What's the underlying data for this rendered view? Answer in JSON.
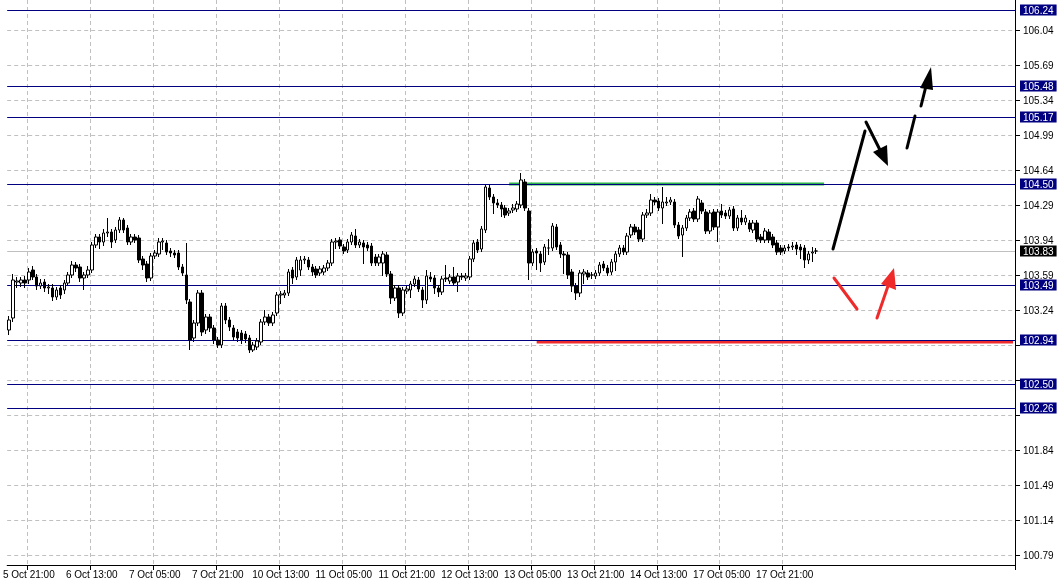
{
  "chart_data": {
    "type": "candlestick",
    "color": "#000000",
    "categories": [
      null,
      null,
      null,
      null,
      null,
      "5 Oct 21:00",
      null,
      null,
      null,
      null,
      null,
      null,
      null,
      null,
      null,
      null,
      null,
      null,
      null,
      null,
      null,
      "6 Oct 13:00",
      null,
      null,
      null,
      null,
      null,
      null,
      null,
      null,
      null,
      null,
      null,
      null,
      null,
      null,
      null,
      "7 Oct 05:00",
      null,
      null,
      null,
      null,
      null,
      null,
      null,
      null,
      null,
      null,
      null,
      null,
      null,
      null,
      null,
      "7 Oct 21:00",
      null,
      null,
      null,
      null,
      null,
      null,
      null,
      null,
      null,
      null,
      null,
      null,
      null,
      null,
      null,
      "10 Oct 13:00",
      null,
      null,
      null,
      null,
      null,
      null,
      null,
      null,
      null,
      null,
      null,
      null,
      null,
      null,
      null,
      "11 Oct 05:00",
      null,
      null,
      null,
      null,
      null,
      null,
      null,
      null,
      null,
      null,
      null,
      null,
      null,
      null,
      null,
      "11 Oct 21:00",
      null,
      null,
      null,
      null,
      null,
      null,
      null,
      null,
      null,
      null,
      null,
      null,
      null,
      null,
      null,
      "12 Oct 13:00",
      null,
      null,
      null,
      null,
      null,
      null,
      null,
      null,
      null,
      null,
      null,
      null,
      null,
      null,
      null,
      "13 Oct 05:00",
      null,
      null,
      null,
      null,
      null,
      null,
      null,
      null,
      null,
      null,
      null,
      null,
      null,
      null,
      null,
      "13 Oct 21:00",
      null,
      null,
      null,
      null,
      null,
      null,
      null,
      null,
      null,
      null,
      null,
      null,
      null,
      null,
      null,
      "14 Oct 13:00",
      null,
      null,
      null,
      null,
      null,
      null,
      null,
      null,
      null,
      null,
      null,
      null,
      null,
      null,
      null,
      "17 Oct 05:00",
      null,
      null,
      null,
      null,
      null,
      null,
      null,
      null,
      null,
      null,
      null,
      null,
      null,
      null,
      null,
      "17 Oct 21:00",
      null,
      null,
      null,
      null,
      null,
      null,
      null,
      null,
      null,
      null,
      null,
      null,
      null,
      null,
      null,
      null,
      null,
      null,
      null,
      null,
      null,
      null,
      null,
      null,
      null,
      null,
      null,
      null,
      null,
      null,
      null,
      null,
      null,
      null,
      null,
      null,
      null,
      null,
      null,
      null,
      null,
      null,
      null,
      null,
      null,
      null,
      null,
      null,
      null,
      null,
      null,
      null,
      null,
      null,
      null,
      null,
      null,
      null
    ],
    "ohlc": [
      [
        103.04,
        103.18,
        102.99,
        103.14
      ],
      [
        103.16,
        103.6,
        103.12,
        103.54
      ],
      [
        103.52,
        103.57,
        103.46,
        103.53
      ],
      [
        103.51,
        103.57,
        103.47,
        103.54
      ],
      [
        103.54,
        103.58,
        103.46,
        103.51
      ],
      [
        103.54,
        103.66,
        103.5,
        103.62
      ],
      [
        103.64,
        103.68,
        103.54,
        103.57
      ],
      [
        103.57,
        103.6,
        103.44,
        103.48
      ],
      [
        103.48,
        103.55,
        103.45,
        103.51
      ],
      [
        103.52,
        103.55,
        103.42,
        103.46
      ],
      [
        103.46,
        103.5,
        103.4,
        103.47
      ],
      [
        103.46,
        103.5,
        103.33,
        103.37
      ],
      [
        103.37,
        103.47,
        103.34,
        103.44
      ],
      [
        103.46,
        103.49,
        103.35,
        103.39
      ],
      [
        103.44,
        103.54,
        103.4,
        103.51
      ],
      [
        103.51,
        103.62,
        103.48,
        103.59
      ],
      [
        103.59,
        103.73,
        103.56,
        103.69
      ],
      [
        103.69,
        103.72,
        103.62,
        103.66
      ],
      [
        103.67,
        103.7,
        103.52,
        103.56
      ],
      [
        103.56,
        103.62,
        103.44,
        103.59
      ],
      [
        103.59,
        103.68,
        103.56,
        103.64
      ],
      [
        103.64,
        103.92,
        103.61,
        103.89
      ],
      [
        103.89,
        104.0,
        103.86,
        103.97
      ],
      [
        103.97,
        104.0,
        103.85,
        103.92
      ],
      [
        103.92,
        104.05,
        103.88,
        104.01
      ],
      [
        104.01,
        104.16,
        103.97,
        104.02
      ],
      [
        104.02,
        104.05,
        103.86,
        103.92
      ],
      [
        103.94,
        104.07,
        103.91,
        104.04
      ],
      [
        104.04,
        104.17,
        104.01,
        104.14
      ],
      [
        104.14,
        104.16,
        104.01,
        104.04
      ],
      [
        104.06,
        104.09,
        103.89,
        103.92
      ],
      [
        103.92,
        104.0,
        103.89,
        103.97
      ],
      [
        103.97,
        104.0,
        103.91,
        103.94
      ],
      [
        103.96,
        103.99,
        103.71,
        103.74
      ],
      [
        103.75,
        103.78,
        103.64,
        103.69
      ],
      [
        103.7,
        103.73,
        103.52,
        103.56
      ],
      [
        103.56,
        103.81,
        103.53,
        103.78
      ],
      [
        103.78,
        103.84,
        103.75,
        103.81
      ],
      [
        103.8,
        103.96,
        103.77,
        103.92
      ],
      [
        103.92,
        103.96,
        103.84,
        103.93
      ],
      [
        103.91,
        103.94,
        103.79,
        103.82
      ],
      [
        103.83,
        103.86,
        103.77,
        103.81
      ],
      [
        103.81,
        103.84,
        103.76,
        103.79
      ],
      [
        103.81,
        103.84,
        103.64,
        103.67
      ],
      [
        103.67,
        103.7,
        103.58,
        103.61
      ],
      [
        103.59,
        103.91,
        103.3,
        103.34
      ],
      [
        103.32,
        103.35,
        102.84,
        102.94
      ],
      [
        102.96,
        103.14,
        102.92,
        103.11
      ],
      [
        103.11,
        103.44,
        103.08,
        103.41
      ],
      [
        103.41,
        103.44,
        102.98,
        103.02
      ],
      [
        103.04,
        103.2,
        103.0,
        103.17
      ],
      [
        103.17,
        103.2,
        103.02,
        103.06
      ],
      [
        103.06,
        103.09,
        102.9,
        102.94
      ],
      [
        102.94,
        102.97,
        102.86,
        102.89
      ],
      [
        102.89,
        103.31,
        102.86,
        103.28
      ],
      [
        103.28,
        103.31,
        103.1,
        103.14
      ],
      [
        103.14,
        103.17,
        103.03,
        103.07
      ],
      [
        103.06,
        103.09,
        102.93,
        102.97
      ],
      [
        103.02,
        103.05,
        102.92,
        102.96
      ],
      [
        103.01,
        103.04,
        102.9,
        102.94
      ],
      [
        103.0,
        103.03,
        102.91,
        102.95
      ],
      [
        102.96,
        102.99,
        102.81,
        102.84
      ],
      [
        102.84,
        102.92,
        102.82,
        102.89
      ],
      [
        102.87,
        102.96,
        102.84,
        102.93
      ],
      [
        102.92,
        103.15,
        102.89,
        103.12
      ],
      [
        103.12,
        103.24,
        103.09,
        103.17
      ],
      [
        103.17,
        103.2,
        103.08,
        103.11
      ],
      [
        103.11,
        103.22,
        103.08,
        103.19
      ],
      [
        103.21,
        103.42,
        103.18,
        103.39
      ],
      [
        103.39,
        103.43,
        103.3,
        103.4
      ],
      [
        103.39,
        103.44,
        103.36,
        103.41
      ],
      [
        103.41,
        103.65,
        103.38,
        103.62
      ],
      [
        103.64,
        103.67,
        103.5,
        103.56
      ],
      [
        103.57,
        103.77,
        103.54,
        103.74
      ],
      [
        103.64,
        103.78,
        103.58,
        103.74
      ],
      [
        103.74,
        103.78,
        103.7,
        103.75
      ],
      [
        103.74,
        103.77,
        103.64,
        103.67
      ],
      [
        103.67,
        103.7,
        103.58,
        103.62
      ],
      [
        103.65,
        103.68,
        103.56,
        103.59
      ],
      [
        103.61,
        103.68,
        103.58,
        103.65
      ],
      [
        103.62,
        103.69,
        103.59,
        103.66
      ],
      [
        103.66,
        103.74,
        103.63,
        103.71
      ],
      [
        103.71,
        103.95,
        103.68,
        103.92
      ],
      [
        103.92,
        103.96,
        103.85,
        103.93
      ],
      [
        103.94,
        103.97,
        103.85,
        103.88
      ],
      [
        103.87,
        103.9,
        103.8,
        103.83
      ],
      [
        103.84,
        103.95,
        103.81,
        103.92
      ],
      [
        103.92,
        104.02,
        103.89,
        103.99
      ],
      [
        103.98,
        104.05,
        103.86,
        103.89
      ],
      [
        103.89,
        103.95,
        103.86,
        103.92
      ],
      [
        103.91,
        103.94,
        103.7,
        103.87
      ],
      [
        103.89,
        103.92,
        103.83,
        103.86
      ],
      [
        103.88,
        103.91,
        103.68,
        103.71
      ],
      [
        103.77,
        103.8,
        103.68,
        103.71
      ],
      [
        103.71,
        103.8,
        103.68,
        103.77
      ],
      [
        103.71,
        103.83,
        103.58,
        103.8
      ],
      [
        103.79,
        103.82,
        103.57,
        103.6
      ],
      [
        103.6,
        103.63,
        103.3,
        103.36
      ],
      [
        103.36,
        103.49,
        103.33,
        103.46
      ],
      [
        103.46,
        103.49,
        103.16,
        103.21
      ],
      [
        103.21,
        103.47,
        103.18,
        103.44
      ],
      [
        103.43,
        103.48,
        103.4,
        103.45
      ],
      [
        103.44,
        103.53,
        103.36,
        103.5
      ],
      [
        103.5,
        103.58,
        103.47,
        103.55
      ],
      [
        103.54,
        103.57,
        103.42,
        103.45
      ],
      [
        103.44,
        103.47,
        103.26,
        103.34
      ],
      [
        103.34,
        103.64,
        103.3,
        103.58
      ],
      [
        103.57,
        103.62,
        103.52,
        103.55
      ],
      [
        103.56,
        103.59,
        103.4,
        103.46
      ],
      [
        103.46,
        103.49,
        103.37,
        103.42
      ],
      [
        103.42,
        103.58,
        103.39,
        103.55
      ],
      [
        103.56,
        103.69,
        103.52,
        103.55
      ],
      [
        103.53,
        103.6,
        103.5,
        103.57
      ],
      [
        103.57,
        103.67,
        103.48,
        103.51
      ],
      [
        103.52,
        103.61,
        103.42,
        103.58
      ],
      [
        103.58,
        103.61,
        103.54,
        103.57
      ],
      [
        103.56,
        103.61,
        103.53,
        103.58
      ],
      [
        103.57,
        103.78,
        103.54,
        103.75
      ],
      [
        103.75,
        103.94,
        103.72,
        103.91
      ],
      [
        103.92,
        103.95,
        103.81,
        103.84
      ],
      [
        103.85,
        104.08,
        103.82,
        104.05
      ],
      [
        104.04,
        104.5,
        104.01,
        104.47
      ],
      [
        104.46,
        104.49,
        104.34,
        104.37
      ],
      [
        104.37,
        104.4,
        104.2,
        104.31
      ],
      [
        104.31,
        104.35,
        104.26,
        104.29
      ],
      [
        104.29,
        104.32,
        104.17,
        104.25
      ],
      [
        104.26,
        104.29,
        104.16,
        104.19
      ],
      [
        104.21,
        104.26,
        104.18,
        104.23
      ],
      [
        104.24,
        104.3,
        104.21,
        104.26
      ],
      [
        104.25,
        104.33,
        104.22,
        104.3
      ],
      [
        104.29,
        104.61,
        104.26,
        104.54
      ],
      [
        104.52,
        104.55,
        104.23,
        104.26
      ],
      [
        104.23,
        104.26,
        103.54,
        103.71
      ],
      [
        103.71,
        103.85,
        103.68,
        103.82
      ],
      [
        103.83,
        103.86,
        103.64,
        103.81
      ],
      [
        103.8,
        103.83,
        103.62,
        103.71
      ],
      [
        103.72,
        103.9,
        103.69,
        103.87
      ],
      [
        103.86,
        103.95,
        103.79,
        103.86
      ],
      [
        103.86,
        104.11,
        103.83,
        104.08
      ],
      [
        104.07,
        104.1,
        103.84,
        103.87
      ],
      [
        103.89,
        103.92,
        103.76,
        103.8
      ],
      [
        103.8,
        103.83,
        103.6,
        103.79
      ],
      [
        103.79,
        103.82,
        103.55,
        103.59
      ],
      [
        103.62,
        103.65,
        103.42,
        103.48
      ],
      [
        103.48,
        103.51,
        103.34,
        103.41
      ],
      [
        103.41,
        103.64,
        103.37,
        103.61
      ],
      [
        103.6,
        103.65,
        103.5,
        103.62
      ],
      [
        103.61,
        103.64,
        103.54,
        103.57
      ],
      [
        103.59,
        103.62,
        103.55,
        103.59
      ],
      [
        103.58,
        103.64,
        103.55,
        103.61
      ],
      [
        103.61,
        103.72,
        103.58,
        103.69
      ],
      [
        103.7,
        103.73,
        103.63,
        103.66
      ],
      [
        103.66,
        103.69,
        103.58,
        103.61
      ],
      [
        103.62,
        103.75,
        103.59,
        103.72
      ],
      [
        103.72,
        103.83,
        103.63,
        103.8
      ],
      [
        103.8,
        103.89,
        103.77,
        103.86
      ],
      [
        103.86,
        103.89,
        103.79,
        103.82
      ],
      [
        103.82,
        104.01,
        103.79,
        103.98
      ],
      [
        103.99,
        104.1,
        103.96,
        104.07
      ],
      [
        104.07,
        104.1,
        103.99,
        104.02
      ],
      [
        104.04,
        104.07,
        103.92,
        103.95
      ],
      [
        103.95,
        104.22,
        103.92,
        104.19
      ],
      [
        104.19,
        104.25,
        104.16,
        104.21
      ],
      [
        104.21,
        104.4,
        104.18,
        104.34
      ],
      [
        104.34,
        104.37,
        104.29,
        104.32
      ],
      [
        104.33,
        104.36,
        104.23,
        104.26
      ],
      [
        104.26,
        104.47,
        104.1,
        104.32
      ],
      [
        104.31,
        104.37,
        104.28,
        104.32
      ],
      [
        104.32,
        104.37,
        104.29,
        104.34
      ],
      [
        104.32,
        104.35,
        104.06,
        104.09
      ],
      [
        104.09,
        104.12,
        103.95,
        103.98
      ],
      [
        103.99,
        104.09,
        103.77,
        104.06
      ],
      [
        104.06,
        104.19,
        104.03,
        104.16
      ],
      [
        104.16,
        104.25,
        104.13,
        104.22
      ],
      [
        104.23,
        104.26,
        104.12,
        104.15
      ],
      [
        104.15,
        104.38,
        104.12,
        104.35
      ],
      [
        104.31,
        104.34,
        104.2,
        104.23
      ],
      [
        104.22,
        104.25,
        104.0,
        104.03
      ],
      [
        104.03,
        104.24,
        104.0,
        104.21
      ],
      [
        104.22,
        104.25,
        104.04,
        104.07
      ],
      [
        104.07,
        104.25,
        103.92,
        104.22
      ],
      [
        104.23,
        104.3,
        104.16,
        104.19
      ],
      [
        104.21,
        104.24,
        104.15,
        104.18
      ],
      [
        104.18,
        104.27,
        104.15,
        104.24
      ],
      [
        104.25,
        104.28,
        104.03,
        104.06
      ],
      [
        104.06,
        104.19,
        104.03,
        104.16
      ],
      [
        104.16,
        104.24,
        104.09,
        104.12
      ],
      [
        104.12,
        104.19,
        104.09,
        104.16
      ],
      [
        104.11,
        104.14,
        104.02,
        104.05
      ],
      [
        104.04,
        104.14,
        104.01,
        104.11
      ],
      [
        104.11,
        104.14,
        103.92,
        103.95
      ],
      [
        103.97,
        104.0,
        103.91,
        103.94
      ],
      [
        103.94,
        104.06,
        103.91,
        104.03
      ],
      [
        104.02,
        104.05,
        103.91,
        103.94
      ],
      [
        103.97,
        104.0,
        103.86,
        103.89
      ],
      [
        103.91,
        103.94,
        103.79,
        103.82
      ],
      [
        103.86,
        103.89,
        103.79,
        103.82
      ],
      [
        103.83,
        103.89,
        103.8,
        103.86
      ],
      [
        103.87,
        103.9,
        103.83,
        103.86
      ],
      [
        103.87,
        103.92,
        103.84,
        103.88
      ],
      [
        103.89,
        103.92,
        103.79,
        103.85
      ],
      [
        103.87,
        103.9,
        103.75,
        103.84
      ],
      [
        103.86,
        103.89,
        103.66,
        103.74
      ],
      [
        103.74,
        103.83,
        103.7,
        103.8
      ],
      [
        103.81,
        103.87,
        103.72,
        103.82
      ],
      [
        103.83,
        103.86,
        103.8,
        103.83
      ],
      null,
      null,
      null,
      null,
      null,
      null,
      null,
      null,
      null,
      null,
      null,
      null,
      null,
      null,
      null,
      null,
      null,
      null,
      null,
      null,
      null,
      null,
      null,
      null,
      null,
      null,
      null,
      null,
      null,
      null,
      null,
      null,
      null,
      null,
      null,
      null,
      null,
      null,
      null,
      null,
      null,
      null,
      null,
      null,
      null,
      null,
      null,
      null,
      null,
      null
    ],
    "series": [
      {
        "type": "line",
        "color": "#2db34a",
        "values": [
          null,
          null,
          null,
          null,
          null,
          null,
          null,
          null,
          null,
          null,
          null,
          null,
          null,
          null,
          null,
          null,
          null,
          null,
          null,
          null,
          null,
          null,
          null,
          null,
          null,
          null,
          null,
          null,
          null,
          null,
          null,
          null,
          null,
          null,
          null,
          null,
          null,
          null,
          null,
          null,
          null,
          null,
          null,
          null,
          null,
          null,
          null,
          null,
          null,
          null,
          null,
          null,
          null,
          null,
          null,
          null,
          null,
          null,
          null,
          null,
          null,
          null,
          null,
          null,
          null,
          null,
          null,
          null,
          null,
          null,
          null,
          null,
          null,
          null,
          null,
          null,
          null,
          null,
          null,
          null,
          null,
          null,
          null,
          null,
          null,
          null,
          null,
          null,
          null,
          null,
          null,
          null,
          null,
          null,
          null,
          null,
          null,
          null,
          null,
          null,
          null,
          null,
          null,
          null,
          null,
          null,
          null,
          null,
          null,
          null,
          null,
          null,
          null,
          null,
          null,
          null,
          null,
          null,
          null,
          null,
          null,
          null,
          null,
          null,
          null,
          null,
          null,
          104.5,
          null,
          null,
          null,
          null,
          null,
          null,
          null,
          null,
          null,
          null,
          null,
          null,
          null,
          null,
          null,
          null,
          null,
          null,
          null,
          null,
          null,
          null,
          null,
          null,
          null,
          null,
          null,
          null,
          null,
          null,
          null,
          null,
          null,
          null,
          null,
          null,
          null,
          null,
          null,
          null,
          null,
          null,
          null,
          null,
          null,
          null,
          null,
          null,
          null,
          null,
          null,
          null,
          null,
          null,
          null,
          null,
          null,
          null,
          null,
          null,
          null,
          null,
          null,
          null,
          null,
          null,
          null,
          null,
          null,
          null,
          null,
          null,
          null,
          null,
          null,
          null,
          null,
          null,
          null,
          104.5,
          null,
          null,
          null,
          null,
          null,
          null,
          null,
          null,
          null,
          null,
          null,
          null,
          null,
          null,
          null,
          null,
          null,
          null,
          null,
          null,
          null,
          null,
          null,
          null,
          null,
          null,
          null,
          null,
          null,
          null,
          null,
          null,
          null,
          null,
          null,
          null,
          null,
          null,
          null,
          null,
          null,
          null,
          null,
          null,
          null,
          null,
          null,
          null
        ]
      },
      {
        "type": "line",
        "color": "#ee2a2a",
        "values": [
          null,
          null,
          null,
          null,
          null,
          null,
          null,
          null,
          null,
          null,
          null,
          null,
          null,
          null,
          null,
          null,
          null,
          null,
          null,
          null,
          null,
          null,
          null,
          null,
          null,
          null,
          null,
          null,
          null,
          null,
          null,
          null,
          null,
          null,
          null,
          null,
          null,
          null,
          null,
          null,
          null,
          null,
          null,
          null,
          null,
          null,
          null,
          null,
          null,
          null,
          null,
          null,
          null,
          null,
          null,
          null,
          null,
          null,
          null,
          null,
          null,
          null,
          null,
          null,
          null,
          null,
          null,
          null,
          null,
          null,
          null,
          null,
          null,
          null,
          null,
          null,
          null,
          null,
          null,
          null,
          null,
          null,
          null,
          null,
          null,
          null,
          null,
          null,
          null,
          null,
          null,
          null,
          null,
          null,
          null,
          null,
          null,
          null,
          null,
          null,
          null,
          null,
          null,
          null,
          null,
          null,
          null,
          null,
          null,
          null,
          null,
          null,
          null,
          null,
          null,
          null,
          null,
          null,
          null,
          null,
          null,
          null,
          null,
          null,
          null,
          null,
          null,
          null,
          null,
          null,
          null,
          null,
          null,
          null,
          102.92,
          null,
          null,
          null,
          null,
          null,
          null,
          null,
          null,
          null,
          null,
          null,
          null,
          null,
          null,
          null,
          null,
          null,
          null,
          null,
          null,
          null,
          null,
          null,
          null,
          null,
          null,
          null,
          null,
          null,
          null,
          null,
          null,
          null,
          null,
          null,
          null,
          null,
          null,
          null,
          null,
          null,
          null,
          null,
          null,
          null,
          null,
          null,
          null,
          null,
          null,
          null,
          null,
          null,
          null,
          null,
          null,
          null,
          null,
          null,
          null,
          null,
          null,
          null,
          null,
          null,
          null,
          null,
          null,
          null,
          null,
          null,
          null,
          null,
          null,
          null,
          null,
          null,
          null,
          null,
          null,
          null,
          null,
          null,
          null,
          null,
          null,
          null,
          null,
          null,
          null,
          null,
          null,
          null,
          null,
          null,
          null,
          null,
          null,
          null,
          null,
          null,
          null,
          null,
          null,
          null,
          null,
          null,
          null,
          null,
          null,
          null,
          null,
          null,
          null,
          null,
          null,
          null,
          null,
          null,
          null,
          102.92
        ]
      }
    ],
    "ylim": [
      100.69,
      106.34
    ],
    "yticks": [
      100.79,
      101.14,
      101.49,
      101.84,
      {
        "value": 102.19,
        "label": null
      },
      {
        "value": 102.54,
        "label": null
      },
      {
        "value": 102.89,
        "label": null
      },
      103.24,
      103.59,
      103.94,
      104.29,
      104.64,
      104.99,
      105.34,
      105.69,
      106.04
    ],
    "grid": true,
    "ref_lines": [
      {
        "axis": "y",
        "value": 106.24,
        "label": "106.24",
        "color": "#000080"
      },
      {
        "axis": "y",
        "value": 105.48,
        "label": "105.48",
        "color": "#000080"
      },
      {
        "axis": "y",
        "value": 105.17,
        "label": "105.17",
        "color": "#000080"
      },
      {
        "axis": "y",
        "value": 104.5,
        "label": "104.50",
        "color": "#000080"
      },
      {
        "axis": "y",
        "value": 103.83,
        "label": "103.83",
        "color": "#c0c0c0"
      },
      {
        "axis": "y",
        "value": 103.49,
        "label": "103.49",
        "color": "#000080"
      },
      {
        "axis": "y",
        "value": 102.94,
        "label": "102.94",
        "color": "#000080"
      },
      {
        "axis": "y",
        "value": 102.5,
        "label": "102.50",
        "color": "#000080"
      },
      {
        "axis": "y",
        "value": 102.26,
        "label": "102.26",
        "color": "#000080"
      }
    ]
  }
}
